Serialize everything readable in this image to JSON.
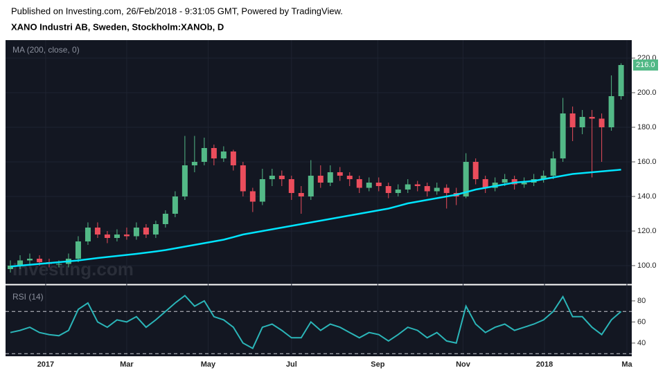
{
  "header": {
    "published": "Published on Investing.com, 26/Feb/2018 - 9:31:05 GMT, Powered by TradingView.",
    "symbol": "XANO Industri AB, Sweden, Stockholm:XANOb, D"
  },
  "watermark": "Investing.com",
  "chart_data": [
    {
      "type": "candlestick",
      "legend": "MA (200, close, 0)",
      "x": [
        0.5,
        1.5,
        2.5,
        3.5,
        4.5,
        5.5,
        6.5,
        7.5,
        8.5,
        9.5,
        10.5,
        11.5,
        12.5,
        13.5,
        14.5,
        15.5,
        16.5,
        17.5,
        18.5,
        19.5,
        20.5,
        21.5,
        22.5,
        23.5,
        24.5,
        25.5,
        26.5,
        27.5,
        28.5,
        29.5,
        30.5,
        31.5,
        32.5,
        33.5,
        34.5,
        35.5,
        36.5,
        37.5,
        38.5,
        39.5,
        40.5,
        41.5,
        42.5,
        43.5,
        44.5,
        45.5,
        46.5,
        47.5,
        48.5,
        49.5,
        50.5,
        51.5,
        52.5,
        53.5,
        54.5,
        55.5,
        56.5,
        57.5,
        58.5,
        59.5,
        60.5,
        61.5,
        62.5,
        63.5
      ],
      "open": [
        98,
        100,
        103,
        104,
        102,
        101,
        101,
        104,
        114,
        122,
        118,
        116,
        118,
        117,
        122,
        118,
        124,
        130,
        140,
        158,
        160,
        168,
        162,
        166,
        158,
        143,
        137,
        150,
        152,
        150,
        142,
        140,
        152,
        148,
        154,
        152,
        150,
        145,
        148,
        146,
        142,
        144,
        147,
        146,
        143,
        145,
        142,
        140,
        160,
        150,
        145,
        148,
        150,
        147,
        148,
        150,
        152,
        162,
        188,
        180,
        186,
        185,
        180,
        198
      ],
      "high": [
        103,
        106,
        107,
        106,
        104,
        103,
        107,
        117,
        125,
        125,
        120,
        121,
        122,
        125,
        124,
        126,
        132,
        143,
        175,
        175,
        174,
        170,
        169,
        167,
        160,
        145,
        156,
        156,
        155,
        152,
        146,
        161,
        158,
        158,
        157,
        154,
        152,
        151,
        151,
        148,
        147,
        150,
        149,
        148,
        148,
        147,
        145,
        165,
        162,
        152,
        151,
        153,
        152,
        151,
        153,
        155,
        166,
        197,
        192,
        190,
        190,
        188,
        210,
        217
      ],
      "low": [
        96,
        98,
        101,
        100,
        99,
        99,
        99,
        102,
        112,
        116,
        113,
        114,
        115,
        115,
        116,
        116,
        122,
        128,
        138,
        154,
        158,
        158,
        160,
        155,
        140,
        131,
        135,
        146,
        146,
        138,
        130,
        138,
        145,
        146,
        149,
        146,
        142,
        143,
        143,
        139,
        140,
        142,
        143,
        140,
        141,
        133,
        135,
        139,
        147,
        142,
        143,
        146,
        144,
        145,
        146,
        148,
        150,
        160,
        172,
        176,
        151,
        160,
        178,
        196
      ],
      "close": [
        100,
        103,
        104,
        102,
        101,
        101,
        104,
        114,
        122,
        118,
        116,
        118,
        117,
        122,
        118,
        124,
        130,
        140,
        158,
        160,
        168,
        162,
        166,
        158,
        143,
        137,
        150,
        152,
        150,
        142,
        140,
        152,
        148,
        154,
        152,
        150,
        145,
        148,
        146,
        142,
        144,
        147,
        146,
        143,
        145,
        142,
        140,
        160,
        150,
        145,
        148,
        150,
        147,
        148,
        150,
        152,
        162,
        188,
        180,
        186,
        185,
        180,
        198,
        216
      ],
      "up_color": "#53b987",
      "down_color": "#eb4d5c",
      "ma": {
        "color": "#00e5ff",
        "values": [
          99.5,
          100,
          100.5,
          101,
          101.5,
          102,
          102.5,
          103,
          103.7,
          104.4,
          105,
          105.6,
          106.2,
          106.8,
          107.5,
          108.2,
          109,
          110,
          111,
          112,
          113,
          114,
          115,
          116.5,
          118,
          119,
          120,
          121,
          122,
          123,
          124,
          125,
          126,
          127,
          128,
          129,
          130,
          131,
          132,
          133,
          134.5,
          136,
          137,
          138,
          139,
          140,
          141,
          142.5,
          144,
          145,
          146,
          147,
          148,
          148.5,
          149,
          150,
          151,
          152,
          153,
          153.5,
          154,
          154.5,
          155,
          155.5
        ]
      },
      "last_price": {
        "value": 216,
        "label": "216.0"
      },
      "xlim": [
        0,
        64.6
      ],
      "ylim": [
        89.6,
        230.4
      ],
      "yticks": [
        {
          "value": 100,
          "label": "100.0"
        },
        {
          "value": 120,
          "label": "120.0"
        },
        {
          "value": 140,
          "label": "140.0"
        },
        {
          "value": 160,
          "label": "160.0"
        },
        {
          "value": 180,
          "label": "180.0"
        },
        {
          "value": 200,
          "label": "200.0"
        },
        {
          "value": 220,
          "label": "220.0"
        }
      ],
      "xticks": [
        {
          "value": 4.14,
          "label": "2017"
        },
        {
          "value": 12.5,
          "label": "Mar"
        },
        {
          "value": 20.9,
          "label": "May"
        },
        {
          "value": 29.5,
          "label": "Jul"
        },
        {
          "value": 38.4,
          "label": "Sep"
        },
        {
          "value": 47.2,
          "label": "Nov"
        },
        {
          "value": 55.6,
          "label": "2018"
        },
        {
          "value": 64.1,
          "label": "Ma"
        }
      ],
      "grid": true
    },
    {
      "type": "line",
      "legend": "RSI (14)",
      "color": "#2bb5b8",
      "values": [
        50,
        52,
        55,
        50,
        48,
        47,
        52,
        72,
        78,
        60,
        55,
        62,
        60,
        65,
        55,
        62,
        70,
        78,
        85,
        75,
        80,
        65,
        62,
        55,
        40,
        35,
        55,
        58,
        52,
        45,
        45,
        60,
        52,
        58,
        55,
        50,
        45,
        50,
        48,
        42,
        48,
        55,
        52,
        45,
        50,
        42,
        40,
        75,
        58,
        50,
        55,
        58,
        52,
        55,
        58,
        62,
        70,
        84,
        65,
        65,
        55,
        48,
        62,
        70
      ],
      "ylim": [
        27.5,
        94.4
      ],
      "yticks": [
        40,
        60,
        80
      ],
      "levels": [
        70,
        30
      ]
    }
  ]
}
